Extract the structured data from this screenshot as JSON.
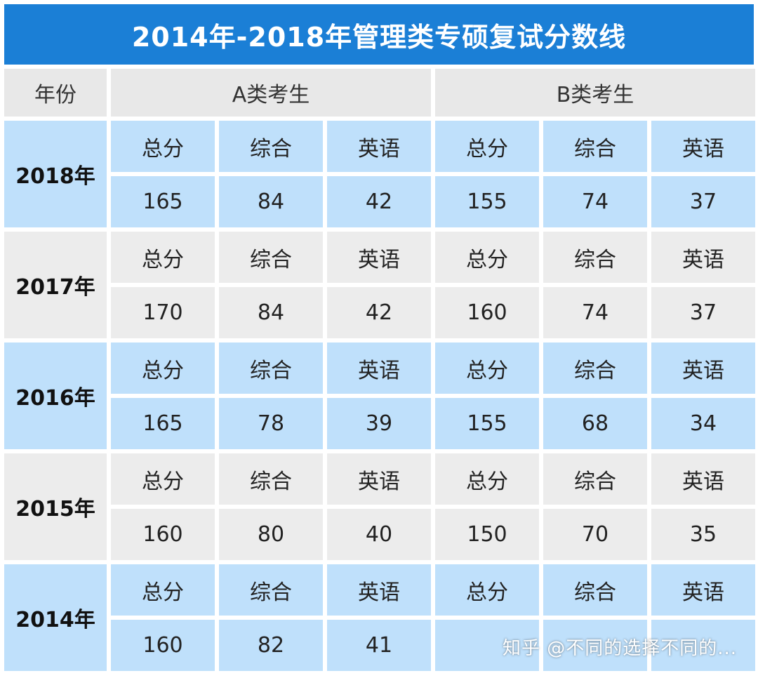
{
  "title": "2014年-2018年管理类专硕复试分数线",
  "headers": {
    "year": "年份",
    "group_a": "A类考生",
    "group_b": "B类考生"
  },
  "subjects": [
    "总分",
    "综合",
    "英语"
  ],
  "rows": [
    {
      "year": "2018年",
      "a": [
        "165",
        "84",
        "42"
      ],
      "b": [
        "155",
        "74",
        "37"
      ]
    },
    {
      "year": "2017年",
      "a": [
        "170",
        "84",
        "42"
      ],
      "b": [
        "160",
        "74",
        "37"
      ]
    },
    {
      "year": "2016年",
      "a": [
        "165",
        "78",
        "39"
      ],
      "b": [
        "155",
        "68",
        "34"
      ]
    },
    {
      "year": "2015年",
      "a": [
        "160",
        "80",
        "40"
      ],
      "b": [
        "150",
        "70",
        "35"
      ]
    },
    {
      "year": "2014年",
      "a": [
        "160",
        "82",
        "41"
      ],
      "b": [
        "",
        "",
        ""
      ]
    }
  ],
  "watermark": "知乎 @不同的选择不同的..."
}
